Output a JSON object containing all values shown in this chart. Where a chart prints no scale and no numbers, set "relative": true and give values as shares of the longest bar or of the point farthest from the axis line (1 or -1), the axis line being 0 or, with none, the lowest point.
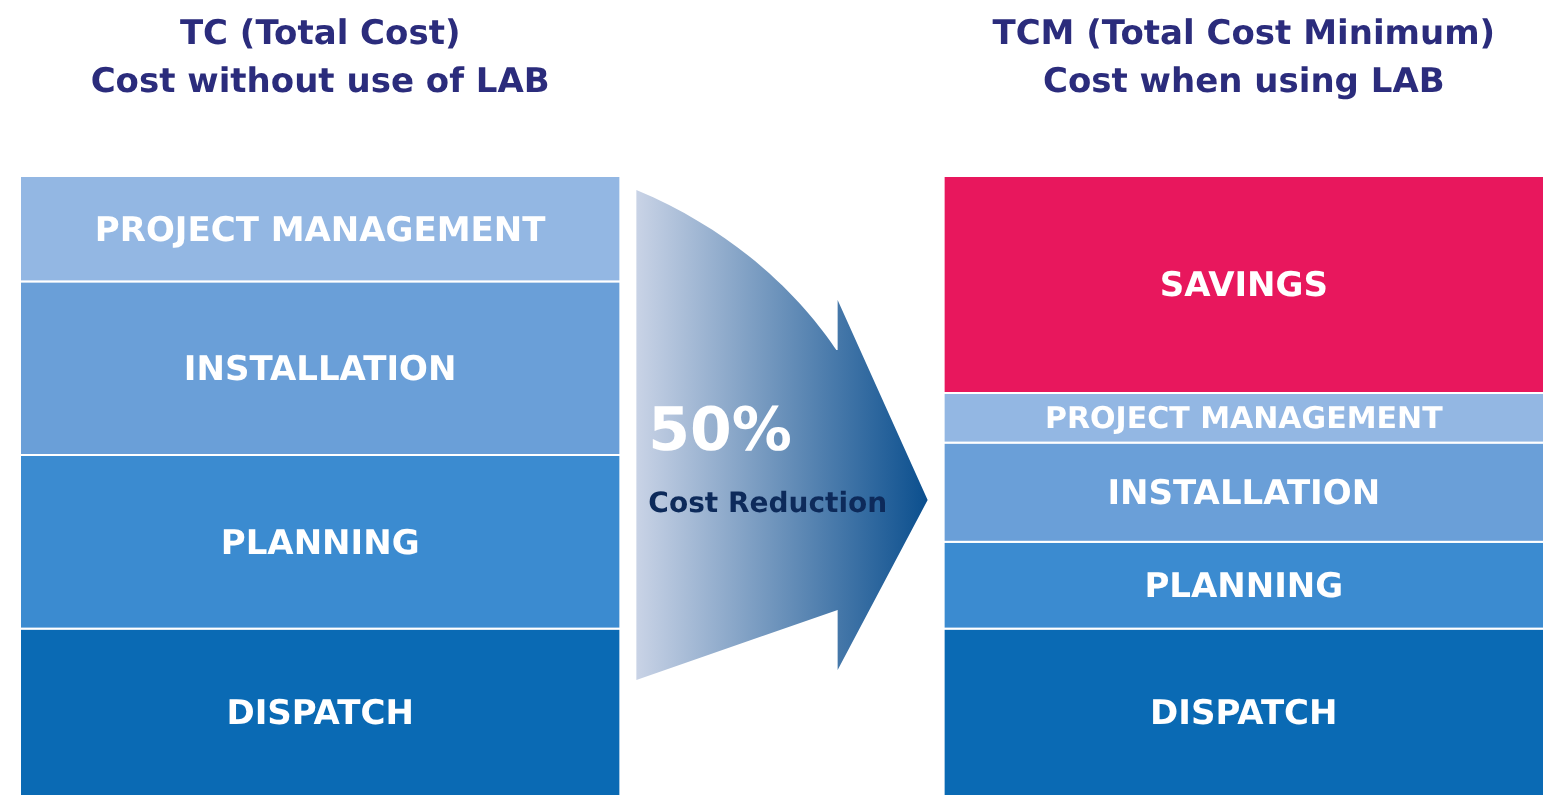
{
  "chart_data": {
    "type": "bar",
    "stacked": true,
    "relative": true,
    "categories": [
      "TC (Total Cost)",
      "TCM (Total Cost Minimum)"
    ],
    "series": [
      {
        "name": "DISPATCH",
        "color": "#0a6ab4",
        "values": [
          0.27,
          0.27
        ]
      },
      {
        "name": "PLANNING",
        "color": "#3b8bd0",
        "values": [
          0.28,
          0.14
        ]
      },
      {
        "name": "INSTALLATION",
        "color": "#6a9fd8",
        "values": [
          0.28,
          0.16
        ]
      },
      {
        "name": "PROJECT MANAGEMENT",
        "color": "#93b7e3",
        "values": [
          0.17,
          0.08
        ]
      },
      {
        "name": "SAVINGS",
        "color": "#e8175d",
        "values": [
          null,
          0.35
        ]
      }
    ],
    "annotations": [
      "Cost without use of LAB",
      "Cost when using LAB",
      "50%",
      "Cost Reduction"
    ]
  }
}
